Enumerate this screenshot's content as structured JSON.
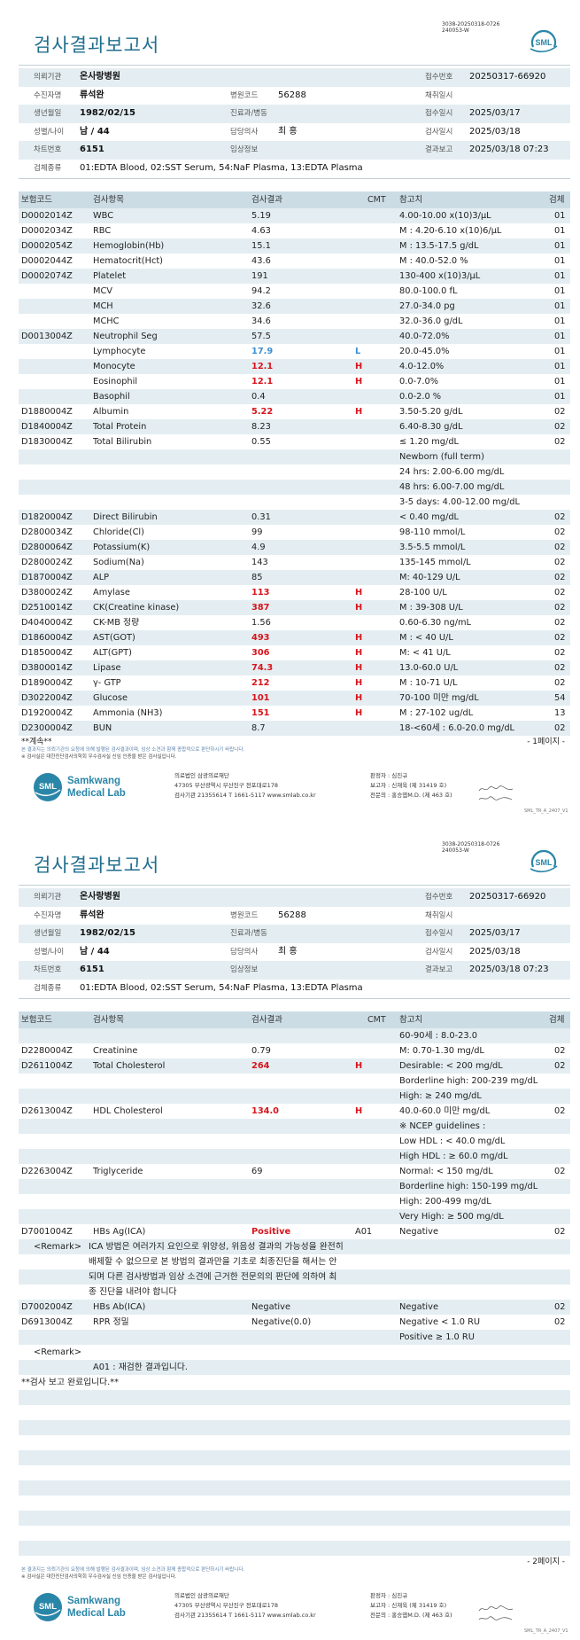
{
  "report": {
    "doc_code": [
      "3038-20250318-0726",
      "240053-W"
    ],
    "logo_text": "SML",
    "title": "검사결과보고서",
    "info_rows": [
      {
        "l1": "의뢰기관",
        "v1": "온사랑병원",
        "l3": "접수번호",
        "v3": "20250317-66920"
      },
      {
        "l1": "수진자명",
        "v1": "류석완",
        "l2": "병원코드",
        "v2": "56288",
        "l3": "채취일시"
      },
      {
        "l1": "생년월일",
        "v1": "1982/02/15",
        "l2": "진료과/병동",
        "l3": "접수일시",
        "v3": "2025/03/17"
      },
      {
        "l1": "성별/나이",
        "v1": "남 / 44",
        "l2": "담당의사",
        "v2": "최 홍",
        "l3": "검사일시",
        "v3": "2025/03/18"
      },
      {
        "l1": "차트번호",
        "v1": "6151",
        "l2": "임상정보",
        "l3": "결과보고",
        "v3": "2025/03/18 07:23"
      },
      {
        "l1": "검체종류",
        "v1": "01:EDTA Blood, 02:SST Serum, 54:NaF Plasma, 13:EDTA Plasma"
      }
    ]
  },
  "table_headers": {
    "code": "보험코드",
    "item": "검사항목",
    "result": "검사결과",
    "cmt": "CMT",
    "ref": "참고치",
    "specimen": "검체"
  },
  "colors": {
    "brand": "#2a86a8",
    "title": "#1f6e8e",
    "high": "#d8141c",
    "low": "#3a8fd4",
    "row_shade": "#e4eef2"
  },
  "pages": [
    {
      "continue_text": "**계속**",
      "page_label": "- 1페이지 -",
      "rows": [
        {
          "code": "D0002014Z",
          "item": "WBC",
          "result": "5.19",
          "ref": "4.00-10.00 x(10)3/μL",
          "specimen": "01"
        },
        {
          "code": "D0002034Z",
          "item": "RBC",
          "result": "4.63",
          "ref": "M : 4.20-6.10 x(10)6/μL",
          "specimen": "01"
        },
        {
          "code": "D0002054Z",
          "item": "Hemoglobin(Hb)",
          "result": "15.1",
          "ref": "M : 13.5-17.5 g/dL",
          "specimen": "01"
        },
        {
          "code": "D0002044Z",
          "item": "Hematocrit(Hct)",
          "result": "43.6",
          "ref": "M : 40.0-52.0 %",
          "specimen": "01"
        },
        {
          "code": "D0002074Z",
          "item": "Platelet",
          "result": "191",
          "ref": "130-400 x(10)3/μL",
          "specimen": "01"
        },
        {
          "item": "MCV",
          "result": "94.2",
          "ref": "80.0-100.0 fL",
          "specimen": "01"
        },
        {
          "item": "MCH",
          "result": "32.6",
          "ref": "27.0-34.0 pg",
          "specimen": "01"
        },
        {
          "item": "MCHC",
          "result": "34.6",
          "ref": "32.0-36.0 g/dL",
          "specimen": "01"
        },
        {
          "code": "D0013004Z",
          "item": "Neutrophil Seg",
          "result": "57.5",
          "ref": "40.0-72.0%",
          "specimen": "01"
        },
        {
          "item": "Lymphocyte",
          "result": "17.9",
          "cmt": "L",
          "ref": "20.0-45.0%",
          "specimen": "01",
          "result_color": "#3a8fd4",
          "cmt_color": "#3a8fd4"
        },
        {
          "item": "Monocyte",
          "result": "12.1",
          "cmt": "H",
          "ref": "4.0-12.0%",
          "specimen": "01",
          "result_color": "#d8141c",
          "cmt_color": "#d8141c"
        },
        {
          "item": "Eosinophil",
          "result": "12.1",
          "cmt": "H",
          "ref": "0.0-7.0%",
          "specimen": "01",
          "result_color": "#d8141c",
          "cmt_color": "#d8141c"
        },
        {
          "item": "Basophil",
          "result": "0.4",
          "ref": "0.0-2.0 %",
          "specimen": "01"
        },
        {
          "code": "D1880004Z",
          "item": "Albumin",
          "result": "5.22",
          "cmt": "H",
          "ref": "3.50-5.20 g/dL",
          "specimen": "02",
          "result_color": "#d8141c",
          "cmt_color": "#d8141c"
        },
        {
          "code": "D1840004Z",
          "item": "Total Protein",
          "result": "8.23",
          "ref": "6.40-8.30 g/dL",
          "specimen": "02"
        },
        {
          "code": "D1830004Z",
          "item": "Total Bilirubin",
          "result": "0.55",
          "ref": "≤ 1.20 mg/dL",
          "specimen": "02"
        },
        {
          "ref": "Newborn (full term)"
        },
        {
          "ref": "24 hrs: 2.00-6.00 mg/dL"
        },
        {
          "ref": "48 hrs: 6.00-7.00 mg/dL"
        },
        {
          "ref": "3-5 days: 4.00-12.00 mg/dL"
        },
        {
          "code": "D1820004Z",
          "item": "Direct Bilirubin",
          "result": "0.31",
          "ref": "< 0.40 mg/dL",
          "specimen": "02"
        },
        {
          "code": "D2800034Z",
          "item": "Chloride(Cl)",
          "result": "99",
          "ref": "98-110 mmol/L",
          "specimen": "02"
        },
        {
          "code": "D2800064Z",
          "item": "Potassium(K)",
          "result": "4.9",
          "ref": "3.5-5.5 mmol/L",
          "specimen": "02"
        },
        {
          "code": "D2800024Z",
          "item": "Sodium(Na)",
          "result": "143",
          "ref": "135-145 mmol/L",
          "specimen": "02"
        },
        {
          "code": "D1870004Z",
          "item": "ALP",
          "result": "85",
          "ref": "M: 40-129 U/L",
          "specimen": "02"
        },
        {
          "code": "D3800024Z",
          "item": "Amylase",
          "result": "113",
          "cmt": "H",
          "ref": "28-100 U/L",
          "specimen": "02",
          "result_color": "#d8141c",
          "cmt_color": "#d8141c"
        },
        {
          "code": "D2510014Z",
          "item": "CK(Creatine kinase)",
          "result": "387",
          "cmt": "H",
          "ref": "M : 39-308 U/L",
          "specimen": "02",
          "result_color": "#d8141c",
          "cmt_color": "#d8141c"
        },
        {
          "code": "D4040004Z",
          "item": "CK-MB 정량",
          "result": "1.56",
          "ref": "0.60-6.30 ng/mL",
          "specimen": "02"
        },
        {
          "code": "D1860004Z",
          "item": "AST(GOT)",
          "result": "493",
          "cmt": "H",
          "ref": "M : < 40 U/L",
          "specimen": "02",
          "result_color": "#d8141c",
          "cmt_color": "#d8141c"
        },
        {
          "code": "D1850004Z",
          "item": "ALT(GPT)",
          "result": "306",
          "cmt": "H",
          "ref": "M: < 41 U/L",
          "specimen": "02",
          "result_color": "#d8141c",
          "cmt_color": "#d8141c"
        },
        {
          "code": "D3800014Z",
          "item": "Lipase",
          "result": "74.3",
          "cmt": "H",
          "ref": "13.0-60.0 U/L",
          "specimen": "02",
          "result_color": "#d8141c",
          "cmt_color": "#d8141c"
        },
        {
          "code": "D1890004Z",
          "item": "γ- GTP",
          "result": "212",
          "cmt": "H",
          "ref": "M : 10-71 U/L",
          "specimen": "02",
          "result_color": "#d8141c",
          "cmt_color": "#d8141c"
        },
        {
          "code": "D3022004Z",
          "item": "Glucose",
          "result": "101",
          "cmt": "H",
          "ref": "70-100 미만 mg/dL",
          "specimen": "54",
          "result_color": "#d8141c",
          "cmt_color": "#d8141c"
        },
        {
          "code": "D1920004Z",
          "item": "Ammonia (NH3)",
          "result": "151",
          "cmt": "H",
          "ref": "M : 27-102 ug/dL",
          "specimen": "13",
          "result_color": "#d8141c",
          "cmt_color": "#d8141c"
        },
        {
          "code": "D2300004Z",
          "item": "BUN",
          "result": "8.7",
          "ref": "18-<60세 : 6.0-20.0 mg/dL",
          "specimen": "02"
        }
      ]
    },
    {
      "page_label": "- 2페이지 -",
      "rows": [
        {
          "ref": "60-90세 : 8.0-23.0"
        },
        {
          "code": "D2280004Z",
          "item": "Creatinine",
          "result": "0.79",
          "ref": "M: 0.70-1.30 mg/dL",
          "specimen": "02"
        },
        {
          "code": "D2611004Z",
          "item": "Total Cholesterol",
          "result": "264",
          "cmt": "H",
          "ref": "Desirable: < 200 mg/dL",
          "specimen": "02",
          "result_color": "#d8141c",
          "cmt_color": "#d8141c"
        },
        {
          "ref": "Borderline high: 200-239 mg/dL"
        },
        {
          "ref": "High: ≥ 240 mg/dL"
        },
        {
          "code": "D2613004Z",
          "item": "HDL Cholesterol",
          "result": "134.0",
          "cmt": "H",
          "ref": "40.0-60.0 미만 mg/dL",
          "specimen": "02",
          "result_color": "#d8141c",
          "cmt_color": "#d8141c"
        },
        {
          "ref": "※ NCEP guidelines :"
        },
        {
          "ref": "Low HDL : < 40.0 mg/dL"
        },
        {
          "ref": "High HDL : ≥ 60.0 mg/dL"
        },
        {
          "code": "D2263004Z",
          "item": "Triglyceride",
          "result": "69",
          "ref": "Normal: < 150 mg/dL",
          "specimen": "02"
        },
        {
          "ref": "Borderline high: 150-199 mg/dL"
        },
        {
          "ref": "High: 200-499 mg/dL"
        },
        {
          "ref": "Very High: ≥ 500 mg/dL"
        },
        {
          "code": "D7001004Z",
          "item": "HBs Ag(ICA)",
          "result": "Positive",
          "cmt": "A01",
          "ref": "Negative",
          "specimen": "02",
          "result_color": "#d8141c"
        },
        {
          "remark_label": "<Remark>",
          "remark_text": "ICA 방법은 여러가지 요인으로 위양성, 위음성 결과의 가능성을 완전히"
        },
        {
          "remark_text": "배제할 수 없으므로 본 방법의 결과만을 기초로 최종진단을 해서는 안"
        },
        {
          "remark_text": "되며 다른 검사방법과 임상 소견에 근거한 전문의의 판단에 의하여 최"
        },
        {
          "remark_text": "종 진단을 내려야 합니다"
        },
        {
          "code": "D7002004Z",
          "item": "HBs Ab(ICA)",
          "result": "Negative",
          "ref": "Negative",
          "specimen": "02"
        },
        {
          "code": "D6913004Z",
          "item": "RPR 정밀",
          "result": "Negative(0.0)",
          "ref": "Negative < 1.0 RU",
          "specimen": "02"
        },
        {
          "ref": "Positive ≥ 1.0 RU"
        },
        {
          "remark_label": "<Remark>"
        },
        {
          "item": "A01 : 재검한 결과입니다."
        },
        {
          "code": "**검사 보고 완료입니다.**"
        },
        {},
        {},
        {},
        {},
        {},
        {},
        {},
        {},
        {},
        {},
        {}
      ]
    }
  ],
  "notice": [
    "본 결과지는 의뢰기관의 요청에 의해 발행된 검사결과이며, 임상 소견과 함께 종합적으로 판단하시기 바랍니다.",
    "※ 검사실은 대한진단검사의학회 우수검사실 신임 인증을 받은 검사실입니다."
  ],
  "footer": {
    "brand": [
      "Samkwang",
      "Medical Lab"
    ],
    "org": [
      "의료법인 삼광의료재단",
      "47305 부산광역시 부산진구 전포대로178",
      "검사기관 21355614 T 1661-5117 www.smlab.co.kr"
    ],
    "signers": [
      "판정자 : 심진규",
      "보고자 : 신재육 (제 31419 호)",
      "전문의 : 홍승엽M.D. (제 463 호)"
    ],
    "form_code": "SML_TR_A_2407_V1"
  }
}
